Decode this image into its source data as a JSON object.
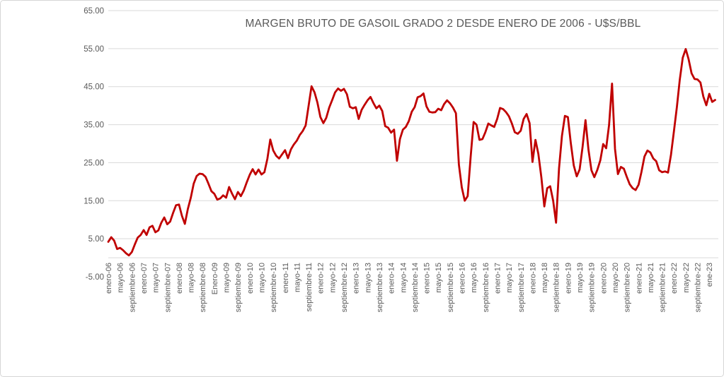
{
  "chart_data": {
    "type": "line",
    "title": "MARGEN BRUTO DE GASOIL GRADO 2 DESDE ENERO DE 2006 - U$S/BBL",
    "xlabel": "",
    "ylabel": "",
    "ylim": [
      -5,
      65
    ],
    "y_ticks": [
      65,
      55,
      45,
      35,
      25,
      15,
      5,
      -5
    ],
    "y_tick_labels": [
      "65.00",
      "55.00",
      "45.00",
      "35.00",
      "25.00",
      "15.00",
      "5.00",
      "-5.00"
    ],
    "grid": "horizontal-only, no gridline at -5, axis line at 0",
    "legend": "none",
    "x_tick_interval_months": 4,
    "x_tick_labels": [
      "enero-06",
      "mayo-06",
      "septiembre-06",
      "enero-07",
      "mayo-07",
      "septiembre-07",
      "enero-08",
      "mayo-08",
      "septiembre-08",
      "Enero-09",
      "mayo-09",
      "septiembre-09",
      "enero-10",
      "mayo-10",
      "septiembre-10",
      "enero-11",
      "mayo-11",
      "septiembre-11",
      "enero-12",
      "mayo-12",
      "septiembre-12",
      "enero-13",
      "mayo-13",
      "septiembre-13",
      "enero-14",
      "mayo-14",
      "septiembre-14",
      "enero-15",
      "mayo-15",
      "septiembre-15",
      "enero-16",
      "mayo-16",
      "septiembre-16",
      "enero-17",
      "mayo-17",
      "septiembre-17",
      "enero-18",
      "mayo-18",
      "septiembre-18",
      "enero-19",
      "mayo-19",
      "septiembre-19",
      "enero-20",
      "mayo-20",
      "septiembre-20",
      "enero-21",
      "mayo-21",
      "septiembre-21",
      "enero-22",
      "mayo-22",
      "septiembre-22",
      "ene-23"
    ],
    "x_start_month": "enero-2006",
    "x_end_month": "marzo-2023",
    "series": [
      {
        "name": "Margen bruto de gasoil grado 2 (U$S/BBL)",
        "color": "#C00000",
        "values": [
          4.2,
          5.4,
          4.5,
          2.3,
          2.6,
          2.0,
          1.2,
          0.6,
          1.5,
          3.5,
          5.3,
          6.0,
          7.3,
          6.0,
          8.0,
          8.4,
          6.7,
          7.2,
          9.2,
          10.6,
          8.8,
          9.5,
          11.8,
          13.8,
          14.0,
          11.0,
          8.9,
          12.8,
          15.8,
          19.5,
          21.5,
          22.1,
          22.0,
          21.3,
          19.5,
          17.5,
          16.8,
          15.3,
          15.6,
          16.4,
          15.8,
          18.6,
          16.9,
          15.4,
          17.3,
          16.2,
          17.7,
          19.8,
          21.8,
          23.3,
          21.9,
          23.2,
          21.9,
          22.5,
          26.0,
          31.1,
          28.2,
          26.8,
          26.1,
          27.2,
          28.3,
          26.2,
          28.5,
          29.8,
          30.8,
          32.3,
          33.3,
          34.8,
          40.0,
          45.1,
          43.5,
          40.8,
          37.0,
          35.4,
          36.8,
          39.5,
          41.5,
          43.5,
          44.5,
          43.9,
          44.4,
          43.0,
          39.7,
          39.3,
          39.6,
          36.5,
          38.9,
          40.2,
          41.4,
          42.3,
          40.7,
          39.3,
          40.0,
          38.6,
          34.6,
          34.2,
          32.9,
          33.7,
          25.5,
          31.2,
          33.7,
          34.4,
          35.9,
          38.4,
          39.6,
          42.2,
          42.5,
          43.2,
          39.8,
          38.4,
          38.2,
          38.3,
          39.2,
          38.8,
          40.4,
          41.4,
          40.6,
          39.5,
          38.0,
          24.5,
          18.5,
          15.0,
          16.2,
          26.5,
          35.7,
          35.0,
          31.0,
          31.2,
          33.0,
          35.3,
          34.8,
          34.4,
          36.5,
          39.4,
          39.1,
          38.3,
          37.2,
          35.3,
          33.0,
          32.6,
          33.4,
          36.5,
          37.8,
          35.4,
          25.2,
          31.0,
          27.3,
          21.2,
          13.5,
          18.3,
          18.8,
          15.0,
          9.2,
          23.5,
          32.0,
          37.3,
          37.0,
          30.2,
          24.3,
          21.4,
          23.2,
          29.2,
          36.2,
          28.4,
          23.0,
          21.2,
          23.1,
          25.6,
          29.9,
          28.8,
          34.9,
          45.8,
          28.6,
          22.0,
          23.9,
          23.4,
          21.3,
          19.3,
          18.3,
          17.8,
          19.2,
          22.6,
          26.6,
          28.2,
          27.7,
          26.1,
          25.4,
          23.0,
          22.5,
          22.7,
          22.4,
          27.1,
          33.2,
          39.6,
          46.8,
          52.6,
          54.9,
          52.2,
          48.5,
          47.0,
          46.9,
          46.1,
          42.4,
          40.1,
          43.1,
          41.0,
          41.5
        ]
      }
    ],
    "colors": {
      "line": "#C00000",
      "gridline": "#D9D9D9",
      "axis_line": "#D9D9D9",
      "text": "#595959",
      "background": "#FFFFFF",
      "frame_border": "#D6D6D6"
    }
  }
}
